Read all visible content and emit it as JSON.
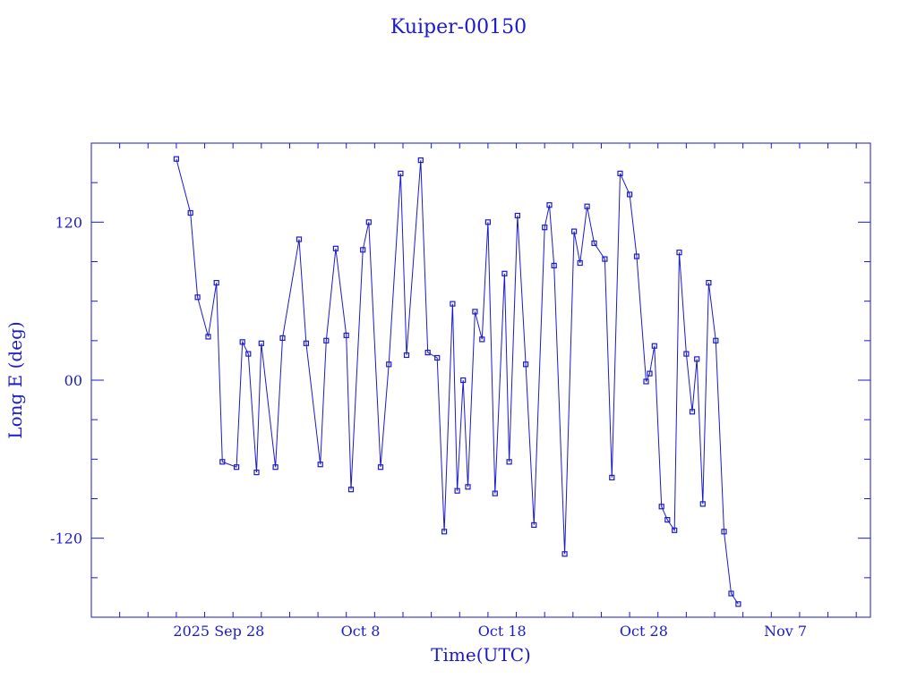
{
  "chart_data": {
    "type": "scatter",
    "title": "Kuiper-00150",
    "xlabel": "Time(UTC)",
    "ylabel": "Long E (deg)",
    "color": "#1a1acc",
    "xlim": [
      "2025-09-19",
      "2025-11-13"
    ],
    "ylim": [
      -180,
      180
    ],
    "grid": false,
    "x_ticks": [
      {
        "date": "2025-09-28",
        "label": "2025 Sep 28"
      },
      {
        "date": "2025-10-08",
        "label": "Oct  8"
      },
      {
        "date": "2025-10-18",
        "label": "Oct 18"
      },
      {
        "date": "2025-10-28",
        "label": "Oct 28"
      },
      {
        "date": "2025-11-07",
        "label": "Nov  7"
      }
    ],
    "y_ticks": [
      {
        "value": 120,
        "label": "120"
      },
      {
        "value": 0,
        "label": "00"
      },
      {
        "value": -120,
        "label": "-120"
      }
    ],
    "series": [
      {
        "points": [
          [
            "2025-09-25T00:00",
            168
          ],
          [
            "2025-09-26T00:00",
            127
          ],
          [
            "2025-09-26T12:00",
            63
          ],
          [
            "2025-09-27T06:00",
            33
          ],
          [
            "2025-09-27T20:00",
            74
          ],
          [
            "2025-09-28T06:00",
            -62
          ],
          [
            "2025-09-29T06:00",
            -66
          ],
          [
            "2025-09-29T16:00",
            29
          ],
          [
            "2025-09-30T02:00",
            20
          ],
          [
            "2025-09-30T16:00",
            -70
          ],
          [
            "2025-10-01T00:00",
            28
          ],
          [
            "2025-10-02T00:00",
            -66
          ],
          [
            "2025-10-02T12:00",
            32
          ],
          [
            "2025-10-03T16:00",
            107
          ],
          [
            "2025-10-04T04:00",
            28
          ],
          [
            "2025-10-05T04:00",
            -64
          ],
          [
            "2025-10-05T14:00",
            30
          ],
          [
            "2025-10-06T06:00",
            100
          ],
          [
            "2025-10-07T00:00",
            34
          ],
          [
            "2025-10-07T08:00",
            -83
          ],
          [
            "2025-10-08T04:00",
            99
          ],
          [
            "2025-10-08T14:00",
            120
          ],
          [
            "2025-10-09T10:00",
            -66
          ],
          [
            "2025-10-10T00:00",
            12
          ],
          [
            "2025-10-10T20:00",
            157
          ],
          [
            "2025-10-11T06:00",
            19
          ],
          [
            "2025-10-12T06:00",
            167
          ],
          [
            "2025-10-12T18:00",
            21
          ],
          [
            "2025-10-13T10:00",
            17
          ],
          [
            "2025-10-13T22:00",
            -115
          ],
          [
            "2025-10-14T12:00",
            58
          ],
          [
            "2025-10-14T20:00",
            -84
          ],
          [
            "2025-10-15T06:00",
            0
          ],
          [
            "2025-10-15T14:00",
            -81
          ],
          [
            "2025-10-16T02:00",
            52
          ],
          [
            "2025-10-16T14:00",
            31
          ],
          [
            "2025-10-17T00:00",
            120
          ],
          [
            "2025-10-17T12:00",
            -86
          ],
          [
            "2025-10-18T04:00",
            81
          ],
          [
            "2025-10-18T12:00",
            -62
          ],
          [
            "2025-10-19T02:00",
            125
          ],
          [
            "2025-10-19T16:00",
            12
          ],
          [
            "2025-10-20T06:00",
            -110
          ],
          [
            "2025-10-21T00:00",
            116
          ],
          [
            "2025-10-21T08:00",
            133
          ],
          [
            "2025-10-21T16:00",
            87
          ],
          [
            "2025-10-22T10:00",
            -132
          ],
          [
            "2025-10-23T02:00",
            113
          ],
          [
            "2025-10-23T12:00",
            89
          ],
          [
            "2025-10-24T00:00",
            132
          ],
          [
            "2025-10-24T12:00",
            104
          ],
          [
            "2025-10-25T06:00",
            92
          ],
          [
            "2025-10-25T18:00",
            -74
          ],
          [
            "2025-10-26T08:00",
            157
          ],
          [
            "2025-10-27T00:00",
            141
          ],
          [
            "2025-10-27T12:00",
            94
          ],
          [
            "2025-10-28T04:00",
            -1
          ],
          [
            "2025-10-28T10:00",
            5
          ],
          [
            "2025-10-28T18:00",
            26
          ],
          [
            "2025-10-29T06:00",
            -96
          ],
          [
            "2025-10-29T16:00",
            -106
          ],
          [
            "2025-10-30T04:00",
            -114
          ],
          [
            "2025-10-30T12:00",
            97
          ],
          [
            "2025-10-31T00:00",
            20
          ],
          [
            "2025-10-31T10:00",
            -24
          ],
          [
            "2025-10-31T18:00",
            16
          ],
          [
            "2025-11-01T04:00",
            -94
          ],
          [
            "2025-11-01T14:00",
            74
          ],
          [
            "2025-11-02T02:00",
            30
          ],
          [
            "2025-11-02T16:00",
            -115
          ],
          [
            "2025-11-03T04:00",
            -162
          ],
          [
            "2025-11-03T16:00",
            -170
          ]
        ]
      }
    ]
  }
}
